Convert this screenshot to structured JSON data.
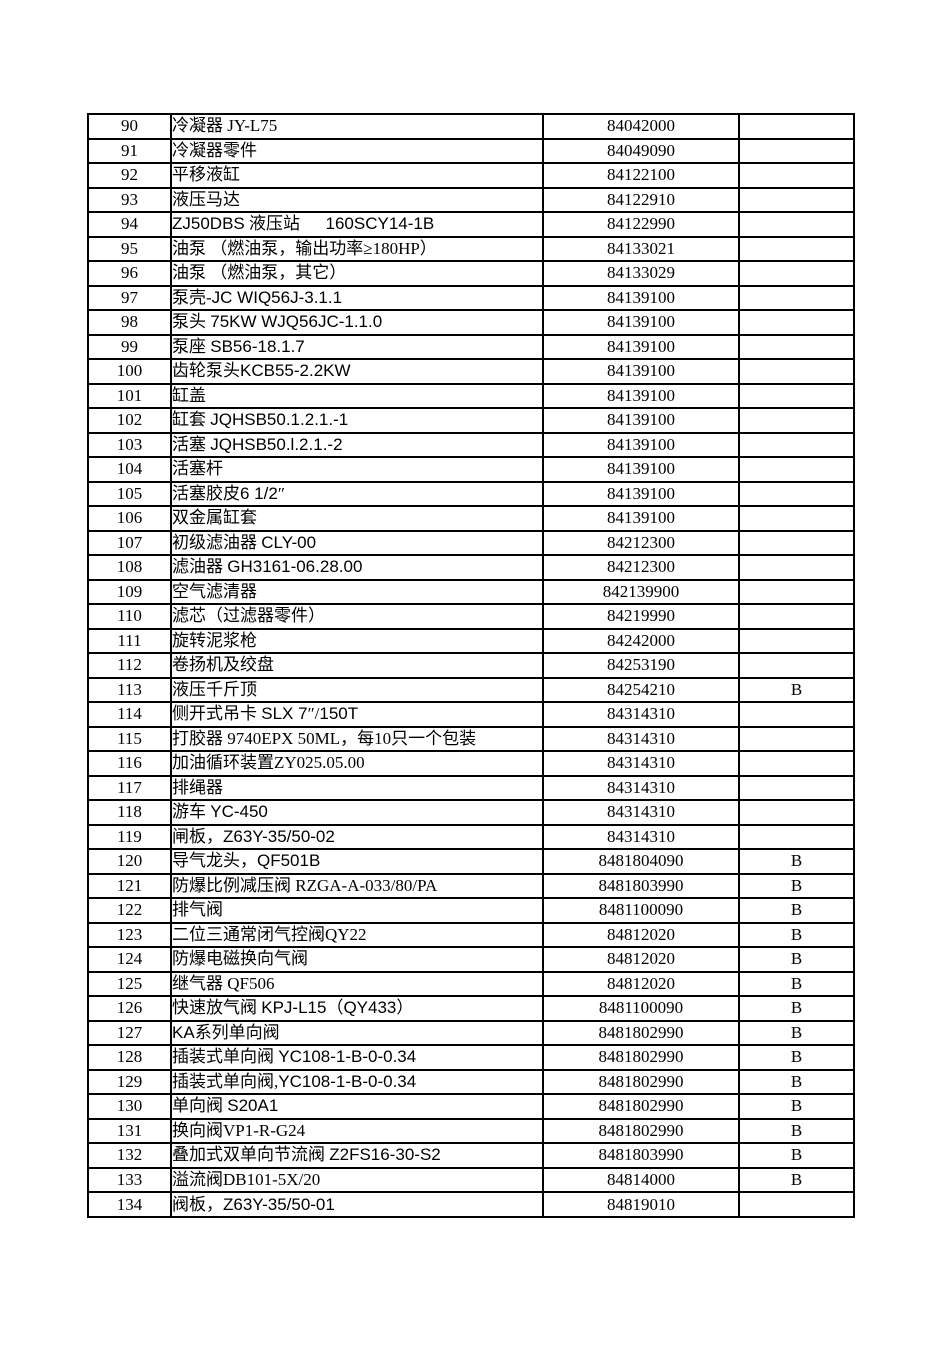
{
  "page": {
    "background": "#ffffff",
    "text_color": "#000000",
    "grid_color": "#000000"
  },
  "table": {
    "rows": [
      {
        "no": "90",
        "desc": "冷凝器 JY-L75",
        "code": "84042000",
        "remark": "",
        "latin_sans": false
      },
      {
        "no": "91",
        "desc": "冷凝器零件",
        "code": "84049090",
        "remark": "",
        "latin_sans": false
      },
      {
        "no": "92",
        "desc": "平移液缸",
        "code": "84122100",
        "remark": "",
        "latin_sans": false
      },
      {
        "no": "93",
        "desc": "液压马达",
        "code": "84122910",
        "remark": "",
        "latin_sans": false
      },
      {
        "no": "94",
        "desc": "ZJ50DBS 液压站      160SCY14-1B",
        "code": "84122990",
        "remark": "",
        "latin_sans": true
      },
      {
        "no": "95",
        "desc": "油泵 （燃油泵，输出功率≥180HP）",
        "code": "84133021",
        "remark": "",
        "latin_sans": false
      },
      {
        "no": "96",
        "desc": "油泵 （燃油泵，其它）",
        "code": "84133029",
        "remark": "",
        "latin_sans": false
      },
      {
        "no": "97",
        "desc": "泵壳-JC WIQ56J-3.1.1",
        "code": "84139100",
        "remark": "",
        "latin_sans": true
      },
      {
        "no": "98",
        "desc": "泵头 75KW WJQ56JC-1.1.0",
        "code": "84139100",
        "remark": "",
        "latin_sans": true
      },
      {
        "no": "99",
        "desc": "泵座 SB56-18.1.7",
        "code": "84139100",
        "remark": "",
        "latin_sans": true
      },
      {
        "no": "100",
        "desc": "齿轮泵头KCB55-2.2KW",
        "code": "84139100",
        "remark": "",
        "latin_sans": true
      },
      {
        "no": "101",
        "desc": "缸盖",
        "code": "84139100",
        "remark": "",
        "latin_sans": false
      },
      {
        "no": "102",
        "desc": "缸套 JQHSB50.1.2.1.-1",
        "code": "84139100",
        "remark": "",
        "latin_sans": true
      },
      {
        "no": "103",
        "desc": "活塞 JQHSB50.l.2.1.-2",
        "code": "84139100",
        "remark": "",
        "latin_sans": true
      },
      {
        "no": "104",
        "desc": "活塞杆",
        "code": "84139100",
        "remark": "",
        "latin_sans": false
      },
      {
        "no": "105",
        "desc": "活塞胶皮6 1/2″",
        "code": "84139100",
        "remark": "",
        "latin_sans": true
      },
      {
        "no": "106",
        "desc": "双金属缸套",
        "code": "84139100",
        "remark": "",
        "latin_sans": false
      },
      {
        "no": "107",
        "desc": "初级滤油器 CLY-00",
        "code": "84212300",
        "remark": "",
        "latin_sans": true
      },
      {
        "no": "108",
        "desc": "滤油器 GH3161-06.28.00",
        "code": "84212300",
        "remark": "",
        "latin_sans": true
      },
      {
        "no": "109",
        "desc": "空气滤清器",
        "code": "842139900",
        "remark": "",
        "latin_sans": false
      },
      {
        "no": "110",
        "desc": "滤芯（过滤器零件）",
        "code": "84219990",
        "remark": "",
        "latin_sans": false
      },
      {
        "no": "111",
        "desc": "旋转泥浆枪",
        "code": "84242000",
        "remark": "",
        "latin_sans": false
      },
      {
        "no": "112",
        "desc": "卷扬机及绞盘",
        "code": "84253190",
        "remark": "",
        "latin_sans": false
      },
      {
        "no": "113",
        "desc": "液压千斤顶",
        "code": "84254210",
        "remark": "B",
        "latin_sans": false
      },
      {
        "no": "114",
        "desc": "侧开式吊卡 SLX 7″/150T",
        "code": "84314310",
        "remark": "",
        "latin_sans": true
      },
      {
        "no": "115",
        "desc": "打胶器 9740EPX 50ML，每10只一个包装",
        "code": "84314310",
        "remark": "",
        "latin_sans": false
      },
      {
        "no": "116",
        "desc": "加油循环装置ZY025.05.00",
        "code": "84314310",
        "remark": "",
        "latin_sans": false
      },
      {
        "no": "117",
        "desc": "排绳器",
        "code": "84314310",
        "remark": "",
        "latin_sans": false
      },
      {
        "no": "118",
        "desc": "游车 YC-450",
        "code": "84314310",
        "remark": "",
        "latin_sans": true
      },
      {
        "no": "119",
        "desc": "闸板，Z63Y-35/50-02",
        "code": "84314310",
        "remark": "",
        "latin_sans": true
      },
      {
        "no": "120",
        "desc": "导气龙头，QF501B",
        "code": "8481804090",
        "remark": "B",
        "latin_sans": true
      },
      {
        "no": "121",
        "desc": "防爆比例减压阀 RZGA-A-033/80/PA",
        "code": "8481803990",
        "remark": "B",
        "latin_sans": false
      },
      {
        "no": "122",
        "desc": "排气阀",
        "code": "8481100090",
        "remark": "B",
        "latin_sans": false
      },
      {
        "no": "123",
        "desc": "二位三通常闭气控阀QY22",
        "code": "84812020",
        "remark": "B",
        "latin_sans": false
      },
      {
        "no": "124",
        "desc": "防爆电磁换向气阀",
        "code": "84812020",
        "remark": "B",
        "latin_sans": false
      },
      {
        "no": "125",
        "desc": "继气器 QF506",
        "code": "84812020",
        "remark": "B",
        "latin_sans": false
      },
      {
        "no": "126",
        "desc": "快速放气阀 KPJ-L15（QY433）",
        "code": "8481100090",
        "remark": "B",
        "latin_sans": true
      },
      {
        "no": "127",
        "desc": "KA系列单向阀",
        "code": "8481802990",
        "remark": "B",
        "latin_sans": true
      },
      {
        "no": "128",
        "desc": "插装式单向阀 YC108-1-B-0-0.34",
        "code": "8481802990",
        "remark": "B",
        "latin_sans": true
      },
      {
        "no": "129",
        "desc": "插装式单向阀,YC108-1-B-0-0.34",
        "code": "8481802990",
        "remark": "B",
        "latin_sans": true
      },
      {
        "no": "130",
        "desc": "单向阀 S20A1",
        "code": "8481802990",
        "remark": "B",
        "latin_sans": true
      },
      {
        "no": "131",
        "desc": "换向阀VP1-R-G24",
        "code": "8481802990",
        "remark": "B",
        "latin_sans": false
      },
      {
        "no": "132",
        "desc": "叠加式双单向节流阀 Z2FS16-30-S2",
        "code": "8481803990",
        "remark": "B",
        "latin_sans": true
      },
      {
        "no": "133",
        "desc": "溢流阀DB101-5X/20",
        "code": "84814000",
        "remark": "B",
        "latin_sans": false
      },
      {
        "no": "134",
        "desc": "阀板，Z63Y-35/50-01",
        "code": "84819010",
        "remark": "",
        "latin_sans": true
      }
    ]
  }
}
